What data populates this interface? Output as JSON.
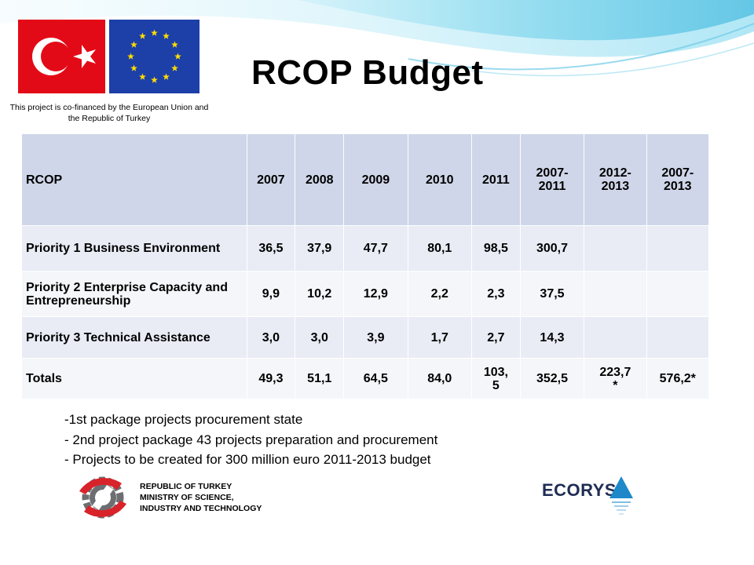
{
  "header": {
    "cofinance_text": "This project is co-financed by the European Union and the Republic of Turkey",
    "title": "RCOP Budget",
    "flag_tr_icon": "turkey-flag-icon",
    "flag_eu_icon": "eu-flag-icon"
  },
  "table": {
    "columns": [
      "RCOP",
      "2007",
      "2008",
      "2009",
      "2010",
      "2011",
      "2007-\n2011",
      "2012-\n2013",
      "2007-\n2013"
    ],
    "rows": [
      [
        "Priority 1 Business Environment",
        "36,5",
        "37,9",
        "47,7",
        "80,1",
        "98,5",
        "300,7",
        "",
        ""
      ],
      [
        "Priority 2 Enterprise Capacity and Entrepreneurship",
        "9,9",
        "10,2",
        "12,9",
        "2,2",
        "2,3",
        "37,5",
        "",
        ""
      ],
      [
        "Priority 3 Technical Assistance",
        "3,0",
        "3,0",
        "3,9",
        "1,7",
        "2,7",
        "14,3",
        "",
        ""
      ],
      [
        "Totals",
        "49,3",
        "51,1",
        "64,5",
        "84,0",
        "103,\n5",
        "352,5",
        "223,7\n*",
        "576,2*"
      ]
    ]
  },
  "notes": [
    "-1st package projects procurement state",
    "- 2nd project package 43 projects preparation and procurement",
    "- Projects to be created for 300 million euro 2011-2013 budget"
  ],
  "footer": {
    "ministry_lines": [
      "REPUBLIC OF TURKEY",
      "MINISTRY OF SCIENCE,",
      "INDUSTRY AND TECHNOLOGY"
    ],
    "ministry_icon": "ministry-gear-logo-icon",
    "ecorys_label": "ECORYS",
    "ecorys_icon": "ecorys-triangle-logo-icon"
  },
  "colors": {
    "header_row": "#cfd6e9",
    "row_odd": "#e9ecf5",
    "row_even": "#f4f6fa",
    "ecorys_blue": "#1e88c9",
    "ministry_red": "#d8232a",
    "ministry_gray": "#6d6e71"
  }
}
